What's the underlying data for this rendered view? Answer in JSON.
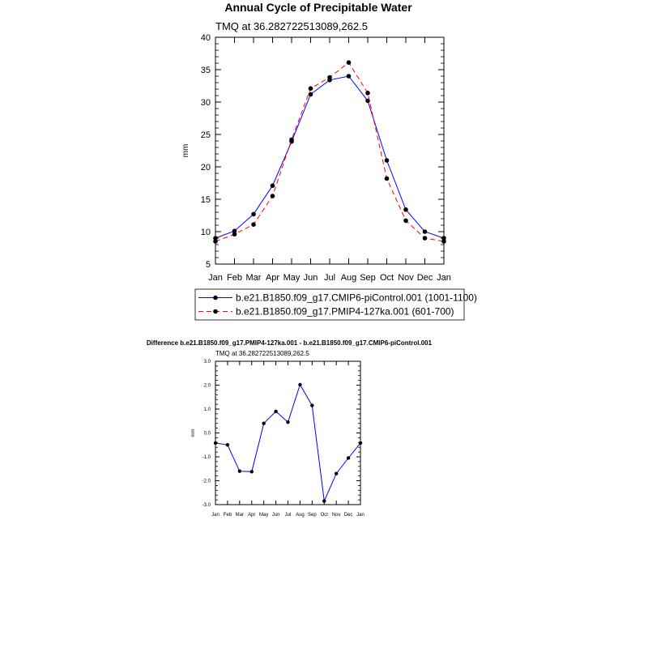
{
  "chart_data": [
    {
      "type": "line",
      "title": "Annual Cycle of Precipitable Water",
      "subtitle": "TMQ at 36.282722513089,262.5",
      "ylabel": "mm",
      "xlabel": "",
      "ylim": [
        5,
        40
      ],
      "yticks": [
        "5",
        "10",
        "15",
        "20",
        "25",
        "30",
        "35",
        "40"
      ],
      "categories": [
        "Jan",
        "Feb",
        "Mar",
        "Apr",
        "May",
        "Jun",
        "Jul",
        "Aug",
        "Sep",
        "Oct",
        "Nov",
        "Dec",
        "Jan"
      ],
      "legend_placement": "bottom",
      "series": [
        {
          "name": "b.e21.B1850.f09_g17.CMIP6-piControl.001 (1001-1100)",
          "color": "#0000ff",
          "dash": "solid",
          "values": [
            9.0,
            10.1,
            12.7,
            17.1,
            23.9,
            31.2,
            33.4,
            34.0,
            30.2,
            21.0,
            13.4,
            10.0,
            9.0
          ]
        },
        {
          "name": "b.e21.B1850.f09_g17.PMIP4-127ka.001 (601-700)",
          "color": "#ff0000",
          "dash": "dashed",
          "values": [
            8.5,
            9.6,
            11.1,
            15.5,
            24.2,
            32.1,
            33.8,
            36.1,
            31.4,
            18.2,
            11.7,
            9.0,
            8.5
          ]
        }
      ]
    },
    {
      "type": "line",
      "title": "Difference b.e21.B1850.f09_g17.PMIP4-127ka.001 - b.e21.B1850.f09_g17.CMIP6-piControl.001",
      "subtitle": "TMQ at 36.282722513089,262.5",
      "ylabel": "mm",
      "xlabel": "",
      "ylim": [
        -3,
        3
      ],
      "yticks": [
        "-3.0",
        "-2.0",
        "-1.0",
        "0.0",
        "1.0",
        "2.0",
        "3.0"
      ],
      "categories": [
        "Jan",
        "Feb",
        "Mar",
        "Apr",
        "May",
        "Jun",
        "Jul",
        "Aug",
        "Sep",
        "Oct",
        "Nov",
        "Dec",
        "Jan"
      ],
      "series": [
        {
          "color": "#0000ff",
          "values": [
            -0.42,
            -0.5,
            -1.6,
            -1.62,
            0.4,
            0.9,
            0.45,
            2.02,
            1.15,
            -2.85,
            -1.7,
            -1.05,
            -0.42
          ]
        }
      ]
    }
  ]
}
